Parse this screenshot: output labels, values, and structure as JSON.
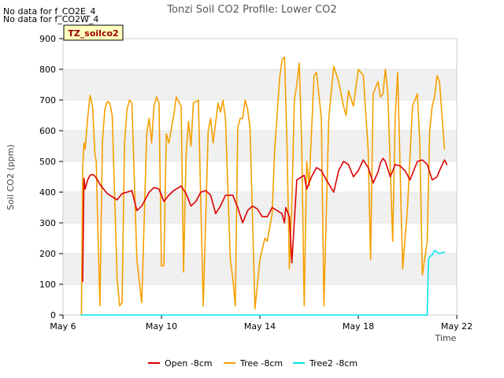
{
  "no_data_notes": [
    "No data for f_CO2E_4",
    "No data for f_CO2W_4"
  ],
  "site_badge": "TZ_soilco2",
  "chart_data": {
    "type": "line",
    "title": "Tonzi Soil CO2 Profile: Lower CO2",
    "xlabel": "Time",
    "ylabel": "Soil CO2 (ppm)",
    "xlim": [
      6,
      22
    ],
    "ylim": [
      0,
      900
    ],
    "yticks": [
      0,
      100,
      200,
      300,
      400,
      500,
      600,
      700,
      800,
      900
    ],
    "xticks": [
      {
        "value": 6,
        "label": "May 6"
      },
      {
        "value": 10,
        "label": "May 10"
      },
      {
        "value": 14,
        "label": "May 14"
      },
      {
        "value": 18,
        "label": "May 18"
      },
      {
        "value": 22,
        "label": "May 22"
      }
    ],
    "grid": "alternating horizontal bands",
    "legend_position": "bottom",
    "series": [
      {
        "name": "Open -8cm",
        "color": "#dd0000",
        "x": [
          6.8,
          6.85,
          6.9,
          7.0,
          7.1,
          7.2,
          7.3,
          7.4,
          7.5,
          7.7,
          7.8,
          8.0,
          8.2,
          8.4,
          8.6,
          8.8,
          9.0,
          9.2,
          9.5,
          9.7,
          9.9,
          10.1,
          10.3,
          10.5,
          10.6,
          10.8,
          11.0,
          11.2,
          11.4,
          11.6,
          11.8,
          12.0,
          12.2,
          12.4,
          12.6,
          12.9,
          13.1,
          13.3,
          13.5,
          13.7,
          13.9,
          14.1,
          14.3,
          14.5,
          14.7,
          14.9,
          15.0,
          15.05,
          15.2,
          15.3,
          15.5,
          15.7,
          15.8,
          15.9,
          16.1,
          16.3,
          16.5,
          16.7,
          17.0,
          17.2,
          17.4,
          17.6,
          17.8,
          18.0,
          18.2,
          18.4,
          18.6,
          18.8,
          18.9,
          19.0,
          19.1,
          19.3,
          19.5,
          19.7,
          19.9,
          20.1,
          20.2,
          20.4,
          20.6,
          20.8,
          21.0,
          21.2,
          21.3,
          21.5,
          21.6
        ],
        "y": [
          110,
          445,
          410,
          440,
          455,
          458,
          452,
          440,
          425,
          405,
          395,
          385,
          375,
          395,
          400,
          405,
          340,
          355,
          400,
          415,
          410,
          370,
          390,
          405,
          410,
          420,
          395,
          355,
          370,
          400,
          405,
          390,
          330,
          355,
          390,
          390,
          350,
          300,
          340,
          355,
          345,
          320,
          320,
          350,
          340,
          330,
          300,
          350,
          320,
          170,
          440,
          450,
          455,
          410,
          450,
          480,
          470,
          440,
          400,
          470,
          500,
          490,
          450,
          470,
          505,
          480,
          430,
          465,
          495,
          510,
          500,
          450,
          490,
          485,
          470,
          440,
          460,
          500,
          505,
          490,
          440,
          450,
          470,
          505,
          490
        ]
      },
      {
        "name": "Tree -8cm",
        "color": "#f5a000",
        "x": [
          6.75,
          6.8,
          6.85,
          6.9,
          7.0,
          7.1,
          7.2,
          7.3,
          7.35,
          7.4,
          7.5,
          7.6,
          7.7,
          7.8,
          7.9,
          8.0,
          8.2,
          8.3,
          8.4,
          8.5,
          8.6,
          8.7,
          8.8,
          9.0,
          9.2,
          9.4,
          9.5,
          9.6,
          9.7,
          9.8,
          9.9,
          10.0,
          10.1,
          10.2,
          10.3,
          10.5,
          10.6,
          10.8,
          10.9,
          11.0,
          11.1,
          11.2,
          11.3,
          11.5,
          11.7,
          11.9,
          12.0,
          12.1,
          12.3,
          12.4,
          12.5,
          12.6,
          12.8,
          12.9,
          13.0,
          13.1,
          13.2,
          13.3,
          13.4,
          13.5,
          13.6,
          13.8,
          14.0,
          14.2,
          14.3,
          14.5,
          14.6,
          14.7,
          14.8,
          14.9,
          15.0,
          15.1,
          15.2,
          15.3,
          15.4,
          15.5,
          15.6,
          15.7,
          15.8,
          15.9,
          16.0,
          16.2,
          16.3,
          16.5,
          16.6,
          16.8,
          17.0,
          17.2,
          17.4,
          17.5,
          17.6,
          17.8,
          18.0,
          18.2,
          18.4,
          18.5,
          18.6,
          18.8,
          18.9,
          19.0,
          19.1,
          19.2,
          19.4,
          19.5,
          19.6,
          19.8,
          20.0,
          20.2,
          20.4,
          20.5,
          20.6,
          20.8,
          20.9,
          21.0,
          21.1,
          21.2,
          21.3,
          21.5
        ],
        "y": [
          0,
          480,
          560,
          540,
          640,
          715,
          680,
          520,
          500,
          330,
          30,
          560,
          670,
          695,
          690,
          650,
          120,
          30,
          40,
          560,
          670,
          700,
          690,
          180,
          40,
          590,
          640,
          560,
          680,
          710,
          690,
          160,
          160,
          590,
          560,
          650,
          710,
          680,
          140,
          520,
          630,
          550,
          690,
          700,
          30,
          600,
          640,
          560,
          690,
          660,
          700,
          640,
          180,
          120,
          30,
          610,
          640,
          640,
          700,
          670,
          610,
          20,
          180,
          250,
          240,
          330,
          540,
          650,
          770,
          830,
          840,
          560,
          150,
          360,
          700,
          750,
          820,
          560,
          30,
          500,
          420,
          780,
          790,
          640,
          30,
          640,
          810,
          760,
          680,
          650,
          730,
          680,
          800,
          780,
          540,
          180,
          720,
          760,
          710,
          720,
          800,
          720,
          240,
          650,
          790,
          150,
          350,
          680,
          720,
          560,
          130,
          240,
          600,
          680,
          710,
          780,
          760,
          540
        ]
      },
      {
        "name": "Tree2 -8cm",
        "color": "#00e5ee",
        "x": [
          6.75,
          20.8,
          20.85,
          20.9,
          21.0,
          21.1,
          21.2,
          21.3,
          21.5
        ],
        "y": [
          0,
          0,
          180,
          190,
          195,
          210,
          205,
          200,
          205
        ]
      }
    ]
  }
}
